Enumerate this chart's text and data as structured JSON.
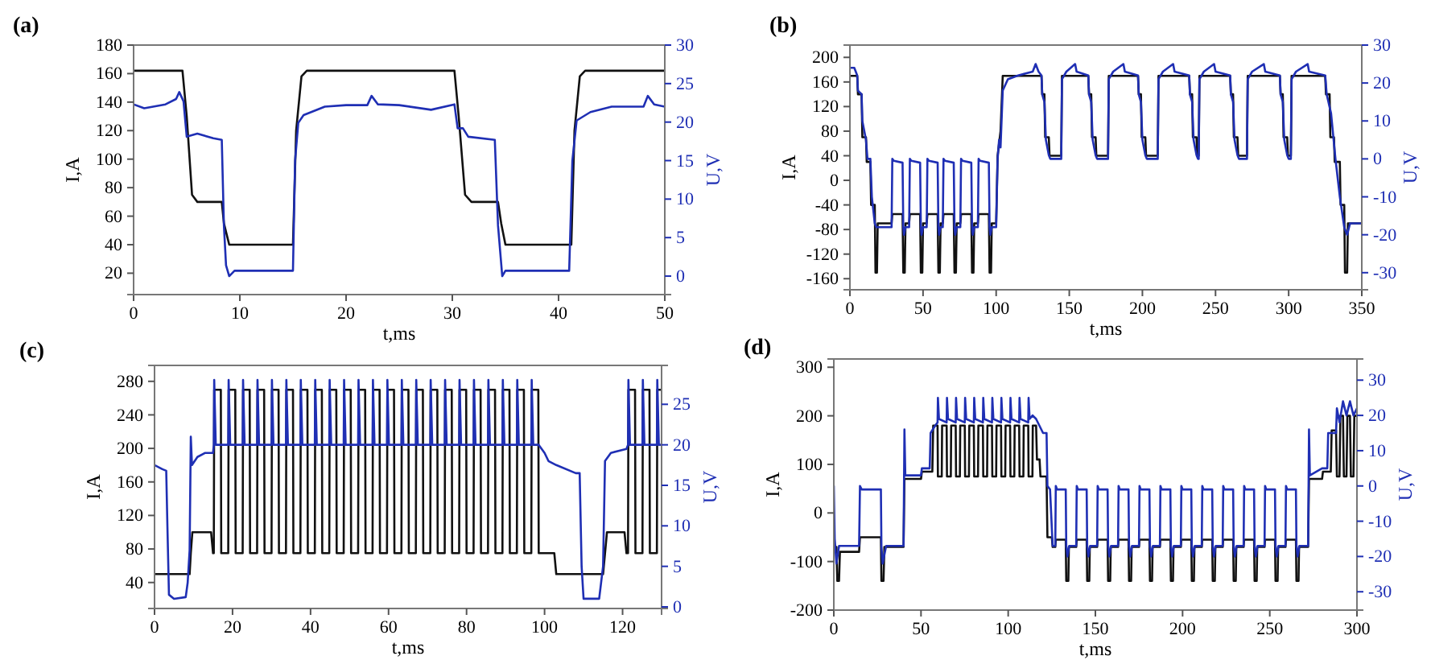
{
  "chart_data": [
    {
      "type": "line",
      "title": "(a)",
      "xlabel": "t,ms",
      "ylabel": "I,A",
      "y2label": "U,V",
      "xlim": [
        0,
        50
      ],
      "xticks": [
        0,
        10,
        20,
        30,
        40,
        50
      ],
      "ylim": [
        5,
        180
      ],
      "yticks": [
        20,
        40,
        60,
        80,
        100,
        120,
        140,
        160,
        180
      ],
      "y2lim": [
        -2.4,
        30
      ],
      "y2ticks": [
        0,
        5,
        10,
        15,
        20,
        25,
        30
      ],
      "series": [
        {
          "axis": "y",
          "color": "#111111",
          "x": [
            0,
            4.6,
            5.0,
            5.5,
            6,
            8.3,
            8.5,
            9,
            15,
            15.3,
            15.8,
            16.3,
            30.2,
            30.6,
            31.2,
            31.8,
            34.3,
            34.6,
            35,
            41.2,
            41.5,
            42,
            42.5,
            50
          ],
          "values": [
            162,
            162,
            130,
            75,
            70,
            70,
            55,
            40,
            40,
            120,
            158,
            162,
            162,
            130,
            75,
            70,
            70,
            55,
            40,
            40,
            120,
            158,
            162,
            162
          ]
        },
        {
          "axis": "y2",
          "color": "#1f2fb4",
          "x": [
            0,
            1,
            3,
            4,
            4.3,
            4.7,
            5,
            6,
            7.5,
            8.3,
            8.5,
            8.7,
            9,
            9.5,
            15,
            15.2,
            15.5,
            16,
            18,
            20,
            22,
            22.4,
            23,
            25,
            28,
            30.2,
            30.5,
            31,
            31.5,
            34,
            34.3,
            34.7,
            35,
            41,
            41.3,
            41.7,
            43,
            45,
            48,
            48.4,
            49,
            50
          ],
          "values": [
            22.3,
            21.8,
            22.3,
            23,
            23.9,
            22.7,
            18.1,
            18.5,
            17.9,
            17.7,
            6.6,
            1.4,
            0,
            0.7,
            0.7,
            15,
            19.9,
            20.9,
            22,
            22.2,
            22.2,
            23.4,
            22.3,
            22.2,
            21.6,
            22.3,
            19.2,
            19.2,
            18.1,
            17.7,
            6.6,
            0,
            0.7,
            0.7,
            15,
            20.2,
            21.3,
            22,
            22,
            23.4,
            22.3,
            22
          ]
        }
      ]
    },
    {
      "type": "line",
      "title": "(b)",
      "xlabel": "t,ms",
      "ylabel": "I,A",
      "y2label": "U,V",
      "xlim": [
        0,
        350
      ],
      "xticks": [
        0,
        50,
        100,
        150,
        200,
        250,
        300,
        350
      ],
      "ylim": [
        -178,
        220
      ],
      "yticks": [
        -160,
        -120,
        -80,
        -40,
        0,
        40,
        80,
        120,
        160,
        200
      ],
      "y2lim": [
        -34.5,
        30
      ],
      "y2ticks": [
        -30,
        -20,
        -10,
        0,
        10,
        20,
        30
      ],
      "series": [
        {
          "axis": "y",
          "color": "#111111",
          "x": [
            0,
            5,
            5.5,
            8,
            8.5,
            11,
            11.5,
            14,
            14.5,
            17,
            17.5,
            18.5,
            19,
            28.5,
            29,
            36,
            36.5,
            37.5,
            38,
            40.5,
            41,
            48,
            48.5,
            49.5,
            50,
            52.5,
            53,
            60,
            60.5,
            61.5,
            62,
            63.5,
            64,
            71,
            71.5,
            72.5,
            73,
            75.5,
            76,
            83,
            83.5,
            84.5,
            85,
            87.5,
            88,
            95,
            95.5,
            96.5,
            97,
            100,
            101,
            103,
            104.5,
            131,
            131.5,
            133,
            133.5,
            136,
            136.5,
            144.5,
            145,
            163,
            163.5,
            165,
            165.5,
            168,
            168.5,
            176.5,
            177,
            197,
            197.5,
            199,
            199.5,
            202,
            202.5,
            210.5,
            211,
            232,
            232.5,
            234,
            234.5,
            237,
            237.5,
            238.5,
            239,
            260,
            260.5,
            262,
            262.5,
            265,
            265.5,
            271.5,
            272,
            294,
            294.5,
            296,
            296.5,
            299,
            299.5,
            301.5,
            302,
            325,
            325.5,
            328,
            328.5,
            331,
            331.5,
            335,
            335.5,
            338,
            338.5,
            340,
            340.5,
            350
          ],
          "values": [
            170,
            170,
            140,
            140,
            70,
            70,
            30,
            30,
            -40,
            -40,
            -150,
            -150,
            -70,
            -70,
            -55,
            -55,
            -150,
            -150,
            -70,
            -70,
            -55,
            -55,
            -150,
            -150,
            -70,
            -70,
            -55,
            -55,
            -150,
            -150,
            -70,
            -70,
            -55,
            -55,
            -150,
            -150,
            -70,
            -70,
            -55,
            -55,
            -150,
            -150,
            -70,
            -70,
            -55,
            -55,
            -150,
            -150,
            -70,
            -70,
            40,
            80,
            170,
            170,
            140,
            140,
            70,
            70,
            40,
            40,
            170,
            170,
            140,
            140,
            70,
            70,
            40,
            40,
            170,
            170,
            140,
            140,
            70,
            70,
            40,
            40,
            170,
            170,
            140,
            140,
            70,
            70,
            40,
            40,
            170,
            170,
            140,
            140,
            70,
            70,
            40,
            40,
            170,
            170,
            140,
            140,
            70,
            70,
            40,
            40,
            170,
            170,
            140,
            140,
            70,
            70,
            30,
            30,
            -40,
            -40,
            -150,
            -150,
            -70,
            -70
          ]
        },
        {
          "axis": "y2",
          "color": "#1f2fb4",
          "x": [
            0,
            3,
            5,
            5.5,
            8,
            8.5,
            11,
            12,
            14,
            15,
            17,
            18,
            28.5,
            29,
            30,
            36,
            36.5,
            37,
            38,
            40.5,
            41,
            42,
            48,
            48.5,
            49,
            50,
            52.5,
            53,
            54,
            60,
            60.5,
            61,
            62,
            63.5,
            64,
            65,
            71,
            71.5,
            72,
            73,
            75.5,
            76,
            77,
            83,
            83.5,
            84,
            85,
            87.5,
            88,
            89,
            95,
            95.5,
            96,
            97,
            100,
            101,
            102,
            103,
            104.5,
            108,
            115,
            125,
            127,
            129,
            131,
            131.5,
            133,
            134,
            136,
            137,
            144.5,
            145,
            148,
            154,
            155,
            163,
            163.5,
            165,
            166,
            168,
            169,
            176.5,
            177,
            180,
            187,
            188,
            197,
            197.5,
            199,
            200,
            202,
            203,
            210.5,
            211,
            214,
            221,
            222,
            232,
            232.5,
            234,
            235,
            237,
            238,
            238.5,
            239,
            242,
            249,
            250,
            260,
            260.5,
            262,
            263,
            265,
            266,
            271.5,
            272,
            275,
            283,
            284,
            294,
            294.5,
            296,
            297,
            299,
            300,
            301.5,
            302,
            305,
            313,
            314,
            325,
            326,
            329,
            332,
            335,
            338,
            340,
            342,
            350
          ],
          "values": [
            24,
            24,
            22,
            18,
            17,
            10,
            5,
            0,
            0,
            -10,
            -17,
            -18,
            -18,
            0,
            -0.5,
            -1,
            -18,
            -20,
            -18,
            -18,
            0,
            -0.5,
            -1,
            -18,
            -20,
            -18,
            -18,
            0,
            -0.5,
            -1,
            -18,
            -20,
            -18,
            -18,
            0,
            -0.5,
            -1,
            -18,
            -20,
            -18,
            -18,
            0,
            -0.5,
            -1,
            -18,
            -20,
            -18,
            -18,
            0,
            -0.5,
            -1,
            -18,
            -20,
            -18,
            -18,
            0,
            5,
            3,
            18,
            21,
            22,
            23,
            25,
            23,
            22,
            17,
            15,
            5,
            1,
            0,
            0,
            21,
            23,
            25,
            23,
            22,
            17,
            15,
            5,
            1,
            0,
            0,
            21,
            23,
            25,
            23,
            22,
            17,
            15,
            5,
            1,
            0,
            0,
            21,
            23,
            25,
            23,
            22,
            17,
            15,
            5,
            1,
            0,
            0,
            21,
            23,
            25,
            23,
            22,
            17,
            15,
            5,
            1,
            0,
            0,
            21,
            23,
            25,
            23,
            22,
            17,
            15,
            5,
            1,
            0,
            0,
            21,
            23,
            25,
            23,
            22,
            17,
            12,
            0,
            -10,
            -18,
            -20,
            -17,
            -17
          ]
        }
      ]
    },
    {
      "type": "line",
      "title": "(c)",
      "xlabel": "t,ms",
      "ylabel": "I,A",
      "y2label": "U,V",
      "xlim": [
        0,
        130
      ],
      "xticks": [
        0,
        20,
        40,
        60,
        80,
        100,
        120
      ],
      "ylim": [
        9,
        299
      ],
      "yticks": [
        40,
        80,
        120,
        160,
        200,
        240,
        280
      ],
      "y2lim": [
        -0.2,
        29.8
      ],
      "y2ticks": [
        0,
        5,
        10,
        15,
        20,
        25
      ],
      "series": [
        {
          "axis": "y",
          "color": "#111111",
          "x": [
            0,
            9,
            9.3,
            9.7,
            14.5,
            15,
            15.2,
            15.3,
            17,
            17.1,
            18.9,
            19,
            20.7,
            20.8,
            22.6,
            22.7,
            24.4,
            24.5,
            26.3,
            26.4,
            28.1,
            28.2,
            30.0,
            30.1,
            31.8,
            31.9,
            33.7,
            33.8,
            35.5,
            35.6,
            37.4,
            37.5,
            39.2,
            39.3,
            41.1,
            41.2,
            42.9,
            43.0,
            44.8,
            44.9,
            46.6,
            46.7,
            48.5,
            48.6,
            50.3,
            50.4,
            52.2,
            52.3,
            54.0,
            54.1,
            55.9,
            56.0,
            57.7,
            57.8,
            59.6,
            59.7,
            61.4,
            61.5,
            63.3,
            63.4,
            65.1,
            65.2,
            67.0,
            67.1,
            68.8,
            68.9,
            70.7,
            70.8,
            72.5,
            72.6,
            74.4,
            74.5,
            76.2,
            76.3,
            78.1,
            78.2,
            79.9,
            80.0,
            81.8,
            81.9,
            83.6,
            83.7,
            85.5,
            85.6,
            87.3,
            87.4,
            89.2,
            89.3,
            91.0,
            91.1,
            92.9,
            93.0,
            94.7,
            94.8,
            96.6,
            96.7,
            98.4,
            98.5,
            102.5,
            103,
            115,
            115.5,
            116,
            120.5,
            121,
            121.4,
            121.5,
            123.2,
            123.3,
            125.1,
            125.2,
            126.9,
            127.0,
            128.8,
            128.9,
            130
          ],
          "values": [
            50,
            50,
            75,
            100,
            100,
            75,
            75,
            270,
            270,
            75,
            75,
            270,
            270,
            75,
            75,
            270,
            270,
            75,
            75,
            270,
            270,
            75,
            75,
            270,
            270,
            75,
            75,
            270,
            270,
            75,
            75,
            270,
            270,
            75,
            75,
            270,
            270,
            75,
            75,
            270,
            270,
            75,
            75,
            270,
            270,
            75,
            75,
            270,
            270,
            75,
            75,
            270,
            270,
            75,
            75,
            270,
            270,
            75,
            75,
            270,
            270,
            75,
            75,
            270,
            270,
            75,
            75,
            270,
            270,
            75,
            75,
            270,
            270,
            75,
            75,
            270,
            270,
            75,
            75,
            270,
            270,
            75,
            75,
            270,
            270,
            75,
            75,
            270,
            270,
            75,
            75,
            270,
            270,
            75,
            75,
            270,
            270,
            75,
            75,
            50,
            50,
            75,
            100,
            100,
            75,
            75,
            270,
            270,
            75,
            75,
            270,
            270,
            75,
            75,
            270,
            270
          ]
        },
        {
          "axis": "y2",
          "color": "#1f2fb4",
          "x": [
            0,
            2,
            3,
            3.3,
            3.7,
            5,
            8,
            8.5,
            9,
            9.3,
            9.6,
            11,
            13,
            15,
            15.2,
            15.3,
            15.7,
            18.9,
            19.0,
            19.4,
            22.6,
            22.7,
            23.1,
            26.3,
            26.4,
            26.8,
            30.0,
            30.1,
            30.5,
            33.7,
            33.8,
            34.2,
            37.4,
            37.5,
            37.9,
            41.1,
            41.2,
            41.6,
            44.8,
            44.9,
            45.3,
            48.5,
            48.6,
            49.0,
            52.2,
            52.3,
            52.7,
            55.9,
            56.0,
            56.4,
            59.6,
            59.7,
            60.1,
            63.3,
            63.4,
            63.8,
            67.0,
            67.1,
            67.5,
            70.7,
            70.8,
            71.2,
            74.4,
            74.5,
            74.9,
            78.1,
            78.2,
            78.6,
            81.8,
            81.9,
            82.3,
            85.5,
            85.6,
            86.0,
            89.2,
            89.3,
            89.7,
            92.9,
            93.0,
            93.4,
            96.6,
            96.7,
            97.1,
            98.5,
            100,
            101,
            103,
            108,
            109,
            109.5,
            110,
            114,
            115,
            115.5,
            117,
            121,
            121.4,
            121.5,
            121.9,
            125.1,
            125.2,
            125.6,
            128.8,
            128.9,
            129.3,
            130
          ],
          "values": [
            17.5,
            17,
            16.8,
            10,
            1.5,
            1,
            1.2,
            3,
            7,
            21,
            17.5,
            18.5,
            19,
            19,
            20,
            28,
            20,
            20,
            28,
            20,
            20,
            28,
            20,
            20,
            28,
            20,
            20,
            28,
            20,
            20,
            28,
            20,
            20,
            28,
            20,
            20,
            28,
            20,
            20,
            28,
            20,
            20,
            28,
            20,
            20,
            28,
            20,
            20,
            28,
            20,
            20,
            28,
            20,
            20,
            28,
            20,
            20,
            28,
            20,
            20,
            28,
            20,
            20,
            28,
            20,
            20,
            28,
            20,
            20,
            28,
            20,
            20,
            28,
            20,
            20,
            28,
            20,
            20,
            28,
            20,
            20,
            28,
            20,
            20,
            19,
            18,
            17.5,
            16.5,
            16.5,
            5,
            1,
            1,
            5,
            18,
            19,
            19.5,
            20,
            28,
            20,
            20,
            28,
            20,
            20,
            28,
            20,
            20
          ]
        }
      ]
    },
    {
      "type": "line",
      "title": "(d)",
      "xlabel": "t,ms",
      "ylabel": "I,A",
      "y2label": "U,V",
      "xlim": [
        0,
        300
      ],
      "xticks": [
        0,
        50,
        100,
        150,
        200,
        250,
        300
      ],
      "ylim": [
        -200,
        317
      ],
      "yticks": [
        -200,
        -100,
        0,
        100,
        200,
        300
      ],
      "y2lim": [
        -35.2,
        36
      ],
      "y2ticks": [
        -30,
        -20,
        -10,
        0,
        10,
        20,
        30
      ],
      "series": [
        {
          "axis": "y",
          "color": "#111111",
          "x": [
            0,
            1.5,
            2,
            3,
            3.5,
            14.5,
            15,
            27,
            27.3,
            28.5,
            29,
            40,
            40.5,
            50,
            50.5,
            56.5,
            57,
            59.5,
            59.7,
            61.9,
            62.1,
            64.7,
            64.9,
            67.1,
            67.3,
            69.9,
            70.1,
            72.3,
            72.5,
            75.1,
            75.3,
            77.5,
            77.7,
            80.3,
            80.5,
            82.7,
            82.9,
            85.5,
            85.7,
            87.9,
            88.1,
            90.7,
            90.9,
            93.1,
            93.3,
            95.9,
            96.1,
            98.3,
            98.5,
            101.1,
            101.3,
            103.5,
            103.7,
            106.3,
            106.5,
            108.7,
            108.9,
            111.5,
            111.7,
            113.9,
            114.1,
            116,
            116.5,
            118,
            118.5,
            122,
            122.5,
            125,
            125.5,
            127,
            127.3,
            133,
            133.3,
            134.5,
            134.8,
            139,
            139.3,
            145,
            145.3,
            146.5,
            146.8,
            151,
            151.3,
            157,
            157.3,
            158.5,
            158.8,
            163,
            163.3,
            169,
            169.3,
            170.5,
            170.8,
            175,
            175.3,
            181,
            181.3,
            182.5,
            182.8,
            187,
            187.3,
            193,
            193.3,
            194.5,
            194.8,
            199,
            199.3,
            205,
            205.3,
            206.5,
            206.8,
            211,
            211.3,
            217,
            217.3,
            218.5,
            218.8,
            223,
            223.3,
            229,
            229.3,
            230.5,
            230.8,
            235,
            235.3,
            241,
            241.3,
            242.5,
            242.8,
            247,
            247.3,
            253,
            253.3,
            254.5,
            254.8,
            259,
            259.3,
            265,
            265.3,
            266.5,
            266.8,
            272,
            272.5,
            280,
            280.5,
            285,
            285.5,
            288,
            288.5,
            290,
            290.5,
            292,
            292.5,
            294,
            294.5,
            296,
            296.5,
            298,
            298.5,
            300
          ],
          "values": [
            -70,
            -70,
            -140,
            -140,
            -80,
            -80,
            -50,
            -50,
            -140,
            -140,
            -70,
            -70,
            70,
            70,
            85,
            85,
            180,
            180,
            75,
            75,
            180,
            180,
            75,
            75,
            180,
            180,
            75,
            75,
            180,
            180,
            75,
            75,
            180,
            180,
            75,
            75,
            180,
            180,
            75,
            75,
            180,
            180,
            75,
            75,
            180,
            180,
            75,
            75,
            180,
            180,
            75,
            75,
            180,
            180,
            75,
            75,
            180,
            180,
            75,
            75,
            180,
            180,
            110,
            110,
            75,
            75,
            -50,
            -50,
            -70,
            -70,
            -55,
            -55,
            -140,
            -140,
            -70,
            -70,
            -55,
            -55,
            -140,
            -140,
            -70,
            -70,
            -55,
            -55,
            -140,
            -140,
            -70,
            -70,
            -55,
            -55,
            -140,
            -140,
            -70,
            -70,
            -55,
            -55,
            -140,
            -140,
            -70,
            -70,
            -55,
            -55,
            -140,
            -140,
            -70,
            -70,
            -55,
            -55,
            -140,
            -140,
            -70,
            -70,
            -55,
            -55,
            -140,
            -140,
            -70,
            -70,
            -55,
            -55,
            -140,
            -140,
            -70,
            -70,
            -55,
            -55,
            -140,
            -140,
            -70,
            -70,
            -55,
            -55,
            -140,
            -140,
            -70,
            -70,
            -55,
            -55,
            -140,
            -140,
            -70,
            -70,
            70,
            70,
            85,
            85,
            170,
            170,
            75,
            75,
            200,
            200,
            75,
            75,
            200,
            200,
            75,
            75,
            200,
            200
          ]
        },
        {
          "axis": "y2",
          "color": "#1f2fb4",
          "x": [
            0,
            0.5,
            1.5,
            3,
            14.5,
            15,
            16,
            27,
            27.3,
            28,
            30,
            40,
            40.5,
            41,
            50,
            50.5,
            55,
            55.5,
            58,
            59.5,
            59.7,
            60.3,
            64.7,
            64.9,
            65.5,
            69.9,
            70.1,
            70.7,
            75.1,
            75.3,
            75.9,
            80.3,
            80.5,
            81.1,
            85.5,
            85.7,
            86.3,
            90.7,
            90.9,
            91.5,
            95.9,
            96.1,
            96.7,
            101.1,
            101.3,
            101.9,
            106.3,
            106.5,
            107.1,
            111.5,
            111.7,
            112.3,
            114,
            116,
            120,
            122,
            122.5,
            124,
            125.5,
            127,
            127.3,
            128,
            133,
            133.3,
            134,
            135,
            139,
            139.3,
            140,
            145,
            145.3,
            146,
            147,
            151,
            151.3,
            152,
            157,
            157.3,
            158,
            159,
            163,
            163.3,
            164,
            169,
            169.3,
            170,
            171,
            175,
            175.3,
            176,
            181,
            181.3,
            182,
            183,
            187,
            187.3,
            188,
            193,
            193.3,
            194,
            195,
            199,
            199.3,
            200,
            205,
            205.3,
            206,
            207,
            211,
            211.3,
            212,
            217,
            217.3,
            218,
            219,
            223,
            223.3,
            224,
            229,
            229.3,
            230,
            231,
            235,
            235.3,
            236,
            241,
            241.3,
            242,
            243,
            247,
            247.3,
            248,
            253,
            253.3,
            254,
            255,
            259,
            259.3,
            260,
            265,
            265.3,
            266,
            267,
            272,
            272.5,
            273,
            280,
            283,
            283.5,
            288,
            288.5,
            290,
            292,
            294,
            296,
            298,
            300
          ],
          "values": [
            0,
            -15,
            -22,
            -17,
            -17,
            0,
            -1,
            -1,
            -17,
            -22,
            -17,
            -17,
            16,
            3,
            3,
            5,
            5,
            15,
            17,
            18,
            25,
            19,
            18,
            25,
            19,
            18,
            25,
            19,
            18,
            25,
            19,
            18,
            25,
            19,
            18,
            25,
            19,
            18,
            25,
            19,
            18,
            25,
            19,
            18,
            25,
            19,
            18,
            25,
            19,
            18,
            25,
            19,
            20,
            19,
            15,
            15,
            0,
            -1,
            -17,
            -17,
            0,
            -1,
            -1,
            -17,
            -20,
            -17,
            -17,
            0,
            -1,
            -1,
            -17,
            -20,
            -17,
            -17,
            0,
            -1,
            -1,
            -17,
            -20,
            -17,
            -17,
            0,
            -1,
            -1,
            -17,
            -20,
            -17,
            -17,
            0,
            -1,
            -1,
            -17,
            -20,
            -17,
            -17,
            0,
            -1,
            -1,
            -17,
            -20,
            -17,
            -17,
            0,
            -1,
            -1,
            -17,
            -20,
            -17,
            -17,
            0,
            -1,
            -1,
            -17,
            -20,
            -17,
            -17,
            0,
            -1,
            -1,
            -17,
            -20,
            -17,
            -17,
            0,
            -1,
            -1,
            -17,
            -20,
            -17,
            -17,
            0,
            -1,
            -1,
            -17,
            -20,
            -17,
            -17,
            0,
            -1,
            -1,
            -17,
            -20,
            -17,
            -17,
            16,
            3,
            5,
            5,
            15,
            15,
            22,
            18,
            24,
            20,
            24,
            20,
            22
          ]
        }
      ]
    }
  ]
}
